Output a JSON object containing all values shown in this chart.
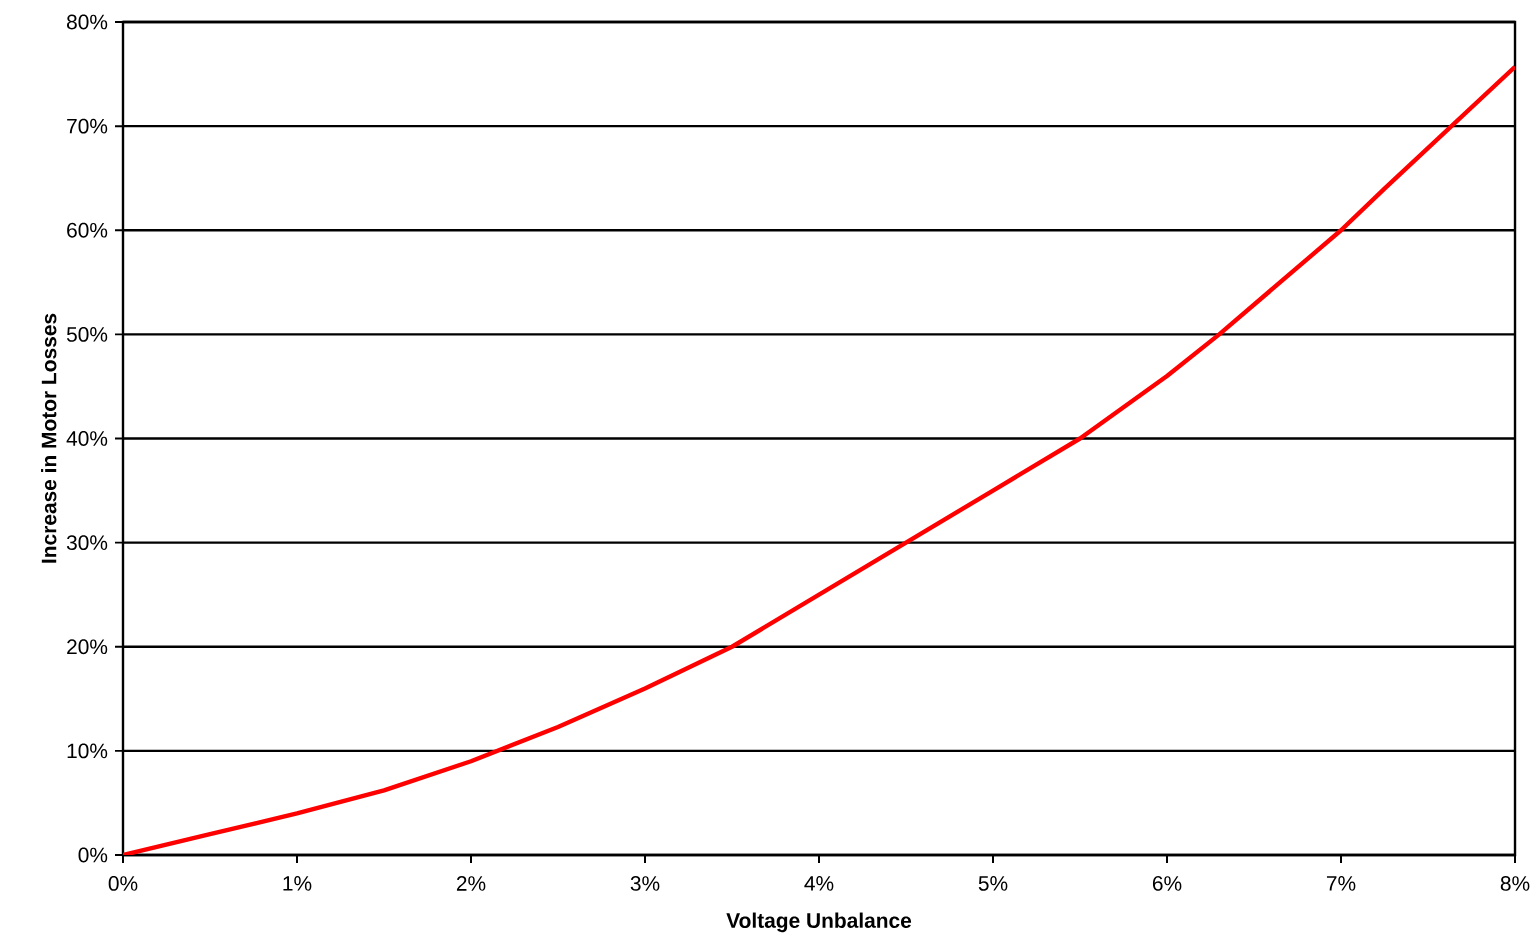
{
  "chart_data": {
    "type": "line",
    "xlabel": "Voltage Unbalance",
    "ylabel": "Increase in Motor Losses",
    "x": [
      0,
      0.5,
      1,
      1.5,
      2,
      2.5,
      3,
      3.5,
      4,
      4.5,
      5,
      5.5,
      6,
      6.3,
      7,
      7.25,
      8
    ],
    "series": [
      {
        "color": "#ff0000",
        "values": [
          0,
          2,
          4,
          6.2,
          9,
          12.3,
          16,
          20,
          25,
          30,
          35,
          40,
          46,
          50,
          60,
          64,
          75.7
        ]
      }
    ],
    "xlim": [
      0,
      8
    ],
    "ylim": [
      0,
      80
    ],
    "xticks": [
      {
        "value": 0,
        "label": "0%"
      },
      {
        "value": 1,
        "label": "1%"
      },
      {
        "value": 2,
        "label": "2%"
      },
      {
        "value": 3,
        "label": "3%"
      },
      {
        "value": 4,
        "label": "4%"
      },
      {
        "value": 5,
        "label": "5%"
      },
      {
        "value": 6,
        "label": "6%"
      },
      {
        "value": 7,
        "label": "7%"
      },
      {
        "value": 8,
        "label": "8%"
      }
    ],
    "yticks": [
      {
        "value": 0,
        "label": "0%"
      },
      {
        "value": 10,
        "label": "10%"
      },
      {
        "value": 20,
        "label": "20%"
      },
      {
        "value": 30,
        "label": "30%"
      },
      {
        "value": 40,
        "label": "40%"
      },
      {
        "value": 50,
        "label": "50%"
      },
      {
        "value": 60,
        "label": "60%"
      },
      {
        "value": 70,
        "label": "70%"
      },
      {
        "value": 80,
        "label": "80%"
      }
    ],
    "grid": "y",
    "marker": "none",
    "line_style": "solid"
  }
}
